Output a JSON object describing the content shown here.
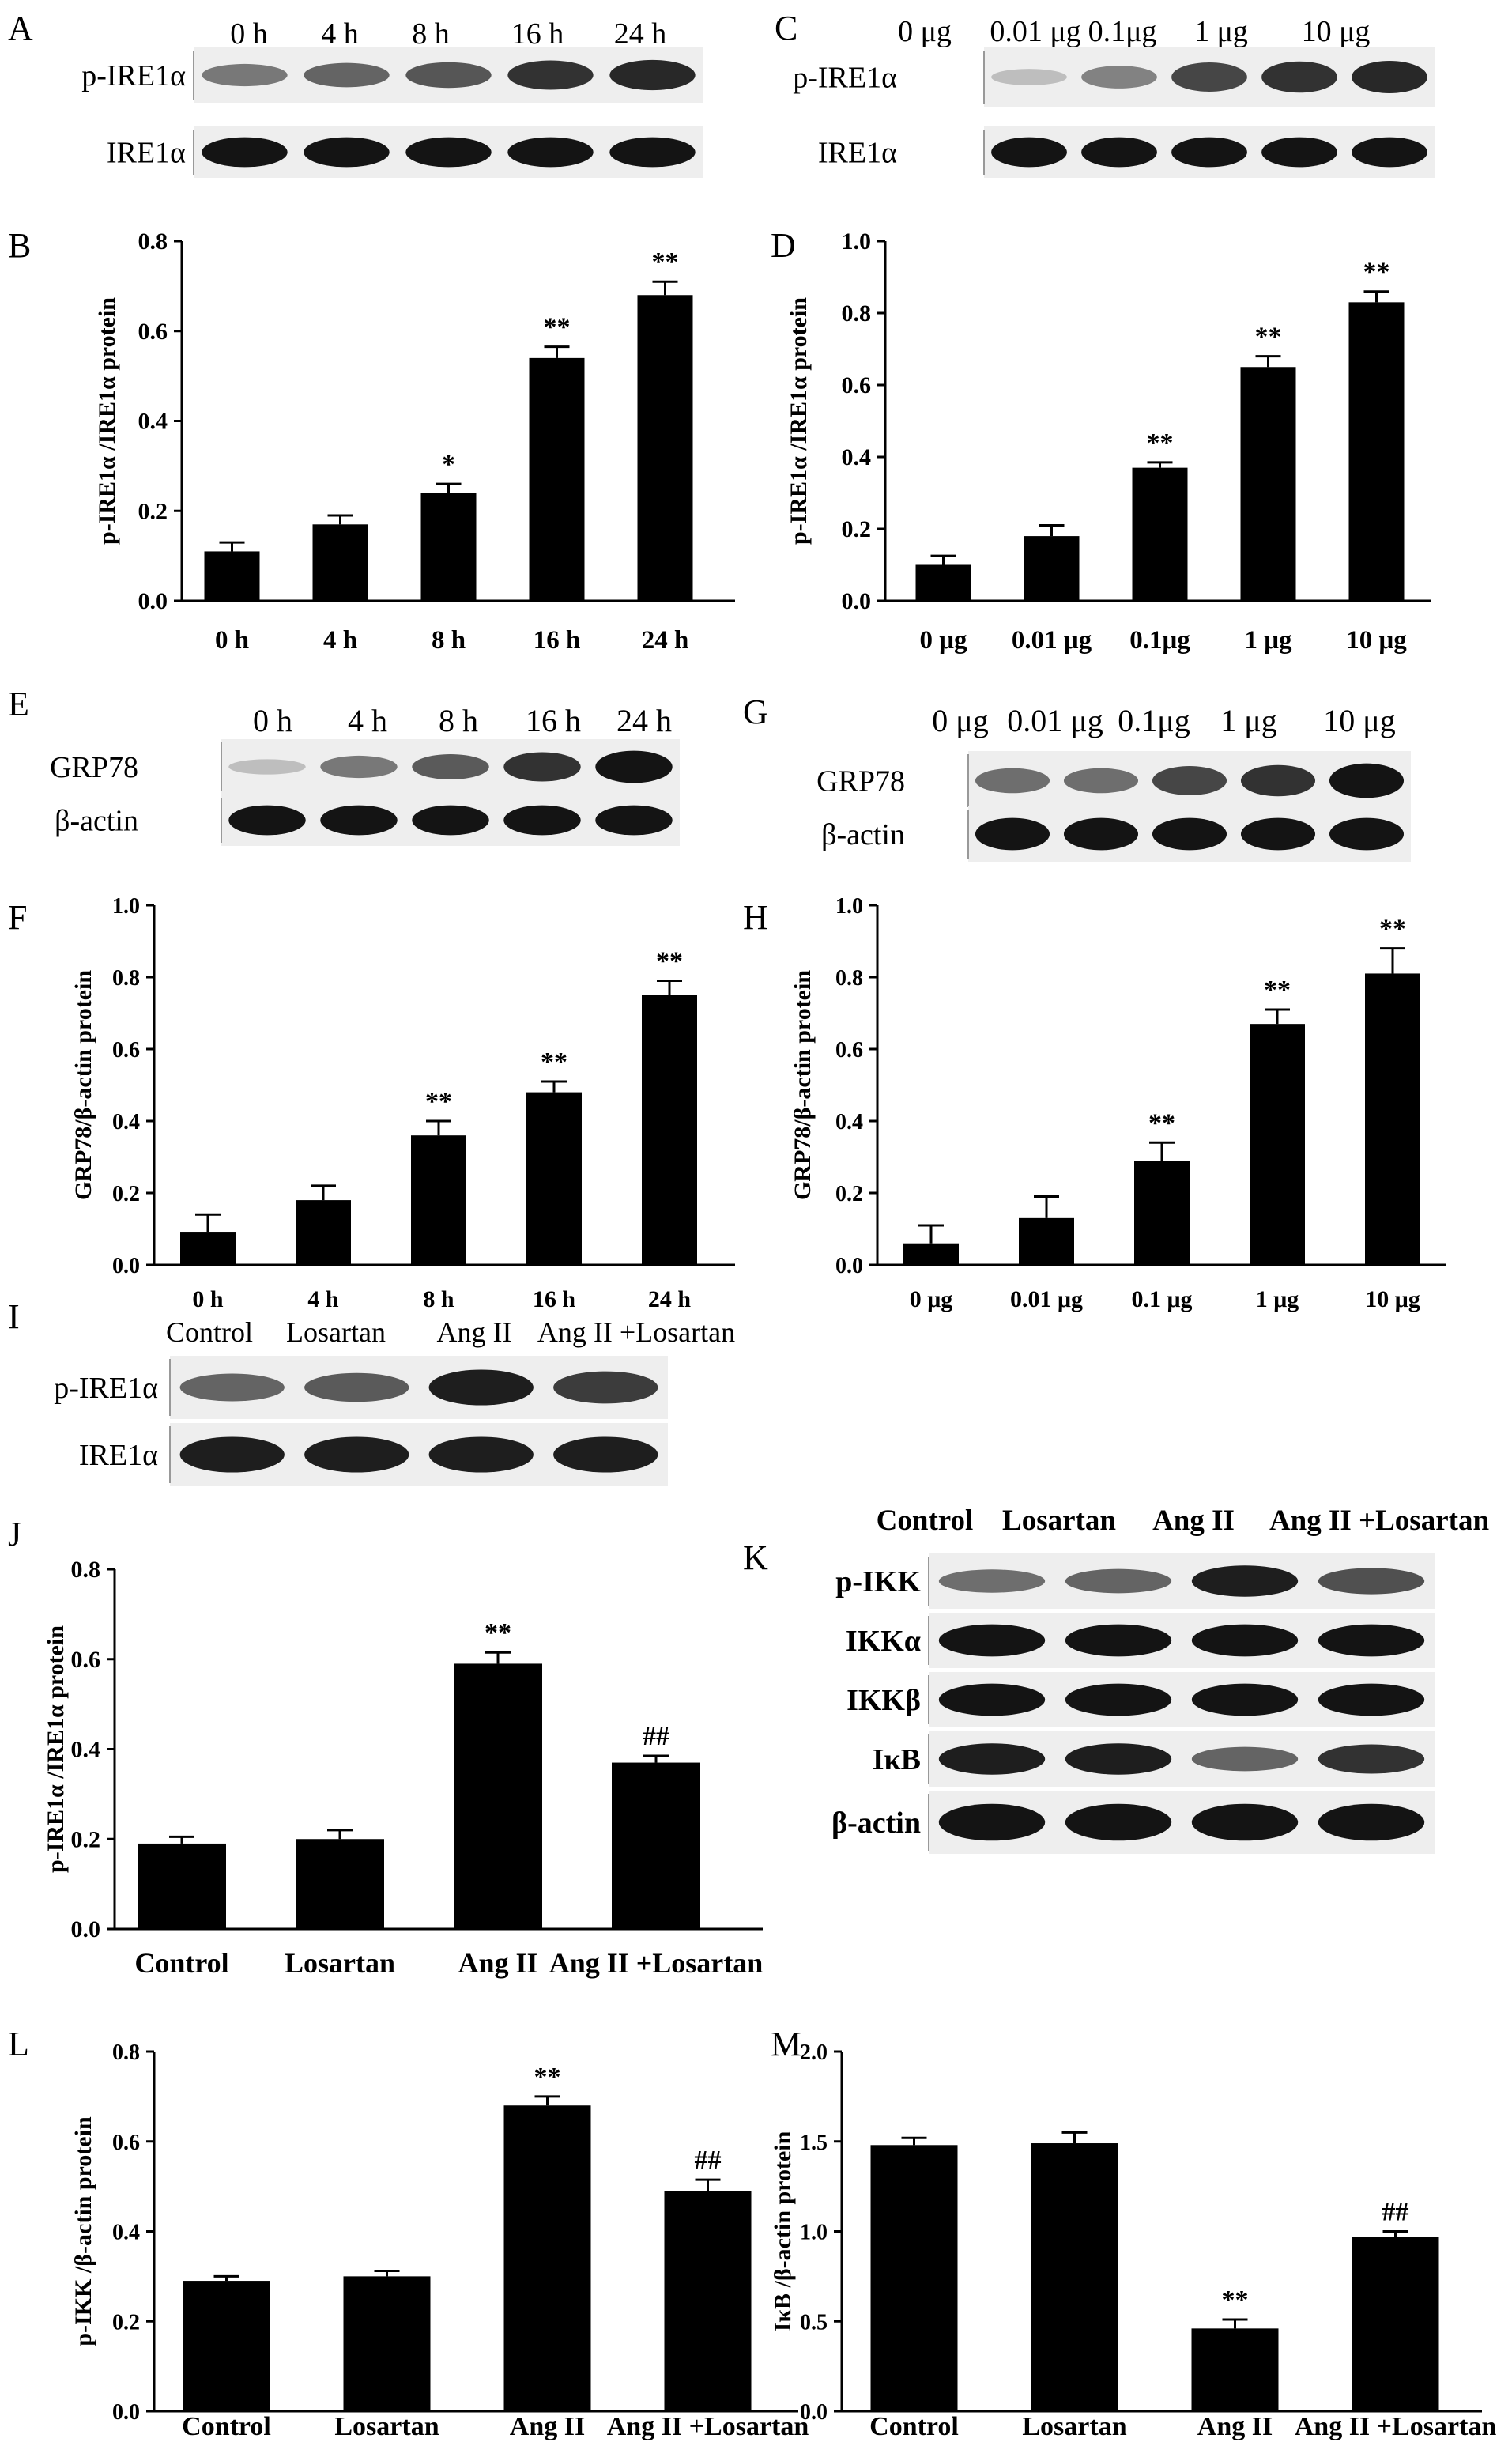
{
  "blots": [
    {
      "letter": "A",
      "lanes": [
        "0 h",
        "4 h",
        "8 h",
        "16 h",
        "24 h"
      ],
      "rows": [
        {
          "label": "p-IRE1α",
          "intensity": [
            0.45,
            0.55,
            0.62,
            0.8,
            0.85
          ]
        },
        {
          "label": "IRE1α",
          "intensity": [
            0.95,
            0.95,
            0.95,
            0.95,
            0.95
          ]
        }
      ]
    },
    {
      "letter": "C",
      "lanes": [
        "0 μg",
        "0.01 μg",
        "0.1μg",
        "1 μg",
        "10 μg"
      ],
      "rows": [
        {
          "label": "p-IRE1α",
          "intensity": [
            0.1,
            0.4,
            0.7,
            0.8,
            0.85
          ]
        },
        {
          "label": "IRE1α",
          "intensity": [
            0.95,
            0.95,
            0.95,
            0.95,
            0.95
          ]
        }
      ]
    },
    {
      "letter": "E",
      "lanes": [
        "0 h",
        "4 h",
        "8 h",
        "16 h",
        "24 h"
      ],
      "rows": [
        {
          "label": "GRP78",
          "intensity": [
            0.1,
            0.45,
            0.6,
            0.8,
            0.95
          ]
        },
        {
          "label": "β-actin",
          "intensity": [
            0.95,
            0.95,
            0.95,
            0.95,
            0.95
          ]
        }
      ]
    },
    {
      "letter": "G",
      "lanes": [
        "0 μg",
        "0.01 μg",
        "0.1μg",
        "1 μg",
        "10 μg"
      ],
      "rows": [
        {
          "label": "GRP78",
          "intensity": [
            0.5,
            0.5,
            0.7,
            0.8,
            0.95
          ]
        },
        {
          "label": "β-actin",
          "intensity": [
            0.95,
            0.95,
            0.95,
            0.95,
            0.95
          ]
        }
      ]
    },
    {
      "letter": "I",
      "lanes": [
        "Control",
        "Losartan",
        "Ang II",
        "Ang II +Losartan"
      ],
      "rows": [
        {
          "label": "p-IRE1α",
          "intensity": [
            0.55,
            0.6,
            0.9,
            0.75
          ]
        },
        {
          "label": "IRE1α",
          "intensity": [
            0.9,
            0.9,
            0.9,
            0.9
          ]
        }
      ]
    },
    {
      "letter": "K",
      "lanes": [
        "Control",
        "Losartan",
        "Ang II",
        "Ang II +Losartan"
      ],
      "rows": [
        {
          "label": "p-IKK",
          "intensity": [
            0.5,
            0.55,
            0.9,
            0.65
          ]
        },
        {
          "label": "IKKα",
          "intensity": [
            0.95,
            0.95,
            0.95,
            0.95
          ]
        },
        {
          "label": "IKKβ",
          "intensity": [
            0.95,
            0.95,
            0.95,
            0.95
          ]
        },
        {
          "label": "IκB",
          "intensity": [
            0.9,
            0.9,
            0.55,
            0.8
          ]
        },
        {
          "label": "β-actin",
          "intensity": [
            0.95,
            0.95,
            0.95,
            0.95
          ]
        }
      ]
    }
  ],
  "chart_data": [
    {
      "letter": "B",
      "type": "bar",
      "ylabel": "p-IRE1α /IRE1α protein",
      "categories": [
        "0 h",
        "4 h",
        "8 h",
        "16 h",
        "24 h"
      ],
      "values": [
        0.11,
        0.17,
        0.24,
        0.54,
        0.68
      ],
      "errors": [
        0.02,
        0.02,
        0.02,
        0.025,
        0.03
      ],
      "annotations": [
        "",
        "",
        "*",
        "**",
        "**"
      ],
      "ylim": [
        0,
        0.8
      ],
      "ticks": [
        "0.0",
        "0.2",
        "0.4",
        "0.6",
        "0.8"
      ]
    },
    {
      "letter": "D",
      "type": "bar",
      "ylabel": "p-IRE1α /IRE1α protein",
      "categories": [
        "0 μg",
        "0.01 μg",
        "0.1μg",
        "1 μg",
        "10 μg"
      ],
      "values": [
        0.1,
        0.18,
        0.37,
        0.65,
        0.83
      ],
      "errors": [
        0.025,
        0.03,
        0.015,
        0.03,
        0.03
      ],
      "annotations": [
        "",
        "",
        "**",
        "**",
        "**"
      ],
      "ylim": [
        0,
        1.0
      ],
      "ticks": [
        "0.0",
        "0.2",
        "0.4",
        "0.6",
        "0.8",
        "1.0"
      ]
    },
    {
      "letter": "F",
      "type": "bar",
      "ylabel": "GRP78/β-actin protein",
      "categories": [
        "0 h",
        "4 h",
        "8 h",
        "16 h",
        "24 h"
      ],
      "values": [
        0.09,
        0.18,
        0.36,
        0.48,
        0.75
      ],
      "errors": [
        0.05,
        0.04,
        0.04,
        0.03,
        0.04
      ],
      "annotations": [
        "",
        "",
        "**",
        "**",
        "**"
      ],
      "ylim": [
        0,
        1.0
      ],
      "ticks": [
        "0.0",
        "0.2",
        "0.4",
        "0.6",
        "0.8",
        "1.0"
      ]
    },
    {
      "letter": "H",
      "type": "bar",
      "ylabel": "GRP78/β-actin protein",
      "categories": [
        "0 μg",
        "0.01 μg",
        "0.1 μg",
        "1 μg",
        "10 μg"
      ],
      "values": [
        0.06,
        0.13,
        0.29,
        0.67,
        0.81
      ],
      "errors": [
        0.05,
        0.06,
        0.05,
        0.04,
        0.07
      ],
      "annotations": [
        "",
        "",
        "**",
        "**",
        "**"
      ],
      "ylim": [
        0,
        1.0
      ],
      "ticks": [
        "0.0",
        "0.2",
        "0.4",
        "0.6",
        "0.8",
        "1.0"
      ]
    },
    {
      "letter": "J",
      "type": "bar",
      "ylabel": "p-IRE1α /IRE1α protein",
      "categories": [
        "Control",
        "Losartan",
        "Ang II",
        "Ang II +Losartan"
      ],
      "values": [
        0.19,
        0.2,
        0.59,
        0.37
      ],
      "errors": [
        0.015,
        0.02,
        0.025,
        0.015
      ],
      "annotations": [
        "",
        "",
        "**",
        "##"
      ],
      "ylim": [
        0,
        0.8
      ],
      "ticks": [
        "0.0",
        "0.2",
        "0.4",
        "0.6",
        "0.8"
      ]
    },
    {
      "letter": "L",
      "type": "bar",
      "ylabel": "p-IKK /β-actin protein",
      "categories": [
        "Control",
        "Losartan",
        "Ang II",
        "Ang II +Losartan"
      ],
      "values": [
        0.29,
        0.3,
        0.68,
        0.49
      ],
      "errors": [
        0.01,
        0.012,
        0.02,
        0.025
      ],
      "annotations": [
        "",
        "",
        "**",
        "##"
      ],
      "ylim": [
        0,
        0.8
      ],
      "ticks": [
        "0.0",
        "0.2",
        "0.4",
        "0.6",
        "0.8"
      ]
    },
    {
      "letter": "M",
      "type": "bar",
      "ylabel": "IκB /β-actin protein",
      "categories": [
        "Control",
        "Losartan",
        "Ang II",
        "Ang II +Losartan"
      ],
      "values": [
        1.48,
        1.49,
        0.46,
        0.97
      ],
      "errors": [
        0.04,
        0.06,
        0.05,
        0.03
      ],
      "annotations": [
        "",
        "",
        "**",
        "##"
      ],
      "ylim": [
        0,
        2.0
      ],
      "ticks": [
        "0.0",
        "0.5",
        "1.0",
        "1.5",
        "2.0"
      ]
    }
  ]
}
